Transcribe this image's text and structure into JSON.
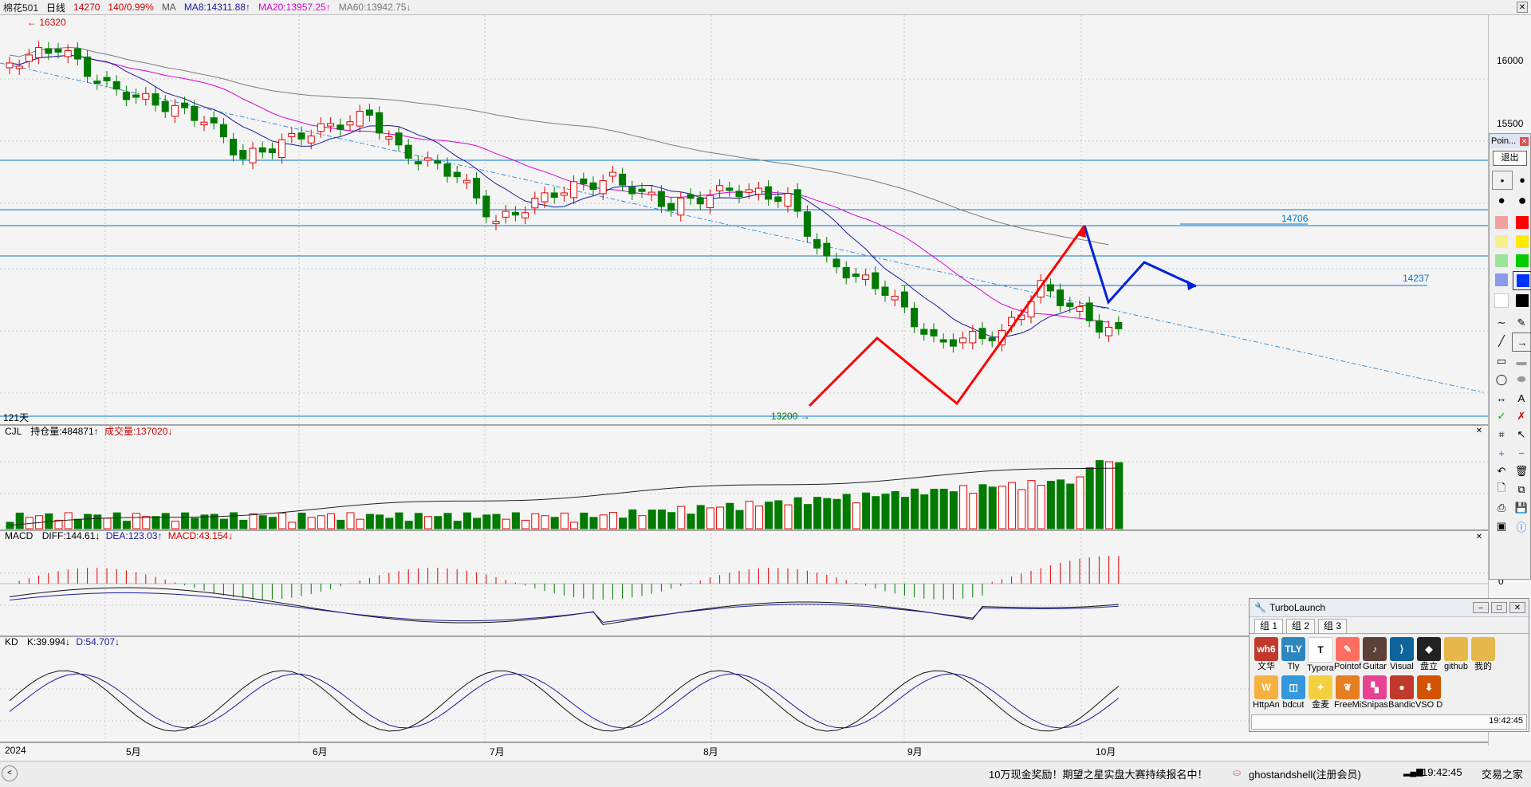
{
  "header": {
    "symbol": "棉花501",
    "period": "日线",
    "price": "14270",
    "change": "140/0.99%",
    "ma_label": "MA",
    "ma8": "MA8:14311.88↑",
    "ma20": "MA20:13957.25↑",
    "ma60": "MA60:13942.75↓"
  },
  "price_axis": {
    "ticks": [
      "16000",
      "15500"
    ]
  },
  "annotations": {
    "high": "16320",
    "low": "13200",
    "level_a": "14706",
    "level_b": "14237",
    "days": "121天"
  },
  "volume_pane": {
    "name": "CJL",
    "oi": "持仓量:484871↑",
    "vol": "成交量:137020↓"
  },
  "macd_pane": {
    "name": "MACD",
    "diff": "DIFF:144.61↓",
    "dea": "DEA:123.03↑",
    "macd": "MACD:43.154↓",
    "zero": "0"
  },
  "kd_pane": {
    "name": "KD",
    "k": "K:39.994↓",
    "d": "D:54.707↓"
  },
  "time_axis": [
    "2024",
    "5月",
    "6月",
    "7月",
    "8月",
    "9月",
    "10月"
  ],
  "colors": {
    "up": "#e00000",
    "down": "#007a00",
    "ma8": "#1a1a9a",
    "ma20": "#d800d8",
    "ma60": "#7a7a7a",
    "grid": "#c8c8c8",
    "hline": "#0078d7"
  },
  "pointofix": {
    "title": "Poin...",
    "exit": "退出"
  },
  "turbolaunch": {
    "title": "TurboLaunch",
    "tabs": [
      "组 1",
      "组 2",
      "组 3"
    ],
    "apps_row1": [
      {
        "label": "文华",
        "icon": "wh6-icon",
        "text": "wh6",
        "color": "#c0392b"
      },
      {
        "label": "Tly",
        "icon": "tly-icon",
        "text": "TLY",
        "color": "#2e86c1"
      },
      {
        "label": "Typora",
        "icon": "typora-icon",
        "text": "T",
        "color": "#ffffff"
      },
      {
        "label": "Pointof",
        "icon": "pointofix-icon",
        "text": "✎",
        "color": "#ff6f61"
      },
      {
        "label": "Guitar",
        "icon": "guitar-icon",
        "text": "♪",
        "color": "#5d4037"
      },
      {
        "label": "Visual",
        "icon": "vscode-icon",
        "text": "⟩",
        "color": "#0e639c"
      },
      {
        "label": "盘立",
        "icon": "panli-icon",
        "text": "◆",
        "color": "#222222"
      },
      {
        "label": "github",
        "icon": "folder-icon",
        "text": "",
        "color": "#e6b74a"
      },
      {
        "label": "我的",
        "icon": "folder-icon",
        "text": "",
        "color": "#e6b74a"
      }
    ],
    "apps_row2": [
      {
        "label": "HttpAn",
        "icon": "httpanalyzer-icon",
        "text": "W",
        "color": "#f5b041"
      },
      {
        "label": "bdcut",
        "icon": "bdcut-icon",
        "text": "◫",
        "color": "#3498db"
      },
      {
        "label": "金麦",
        "icon": "jinmai-icon",
        "text": "✦",
        "color": "#f4d03f"
      },
      {
        "label": "FreeMi",
        "icon": "freemind-icon",
        "text": "❦",
        "color": "#e67e22"
      },
      {
        "label": "Snipas",
        "icon": "snipaste-icon",
        "text": "▚",
        "color": "#e84393"
      },
      {
        "label": "Bandic",
        "icon": "bandicam-icon",
        "text": "●",
        "color": "#c0392b"
      },
      {
        "label": "VSO D",
        "icon": "vso-icon",
        "text": "⬇",
        "color": "#d35400"
      }
    ],
    "time": "19:42:45"
  },
  "status": {
    "ticker": "10万现金奖励！期望之星实盘大赛持续报名中！",
    "user": "ghostandshell(注册会员)",
    "time": "19:42:45",
    "app": "交易之家"
  }
}
